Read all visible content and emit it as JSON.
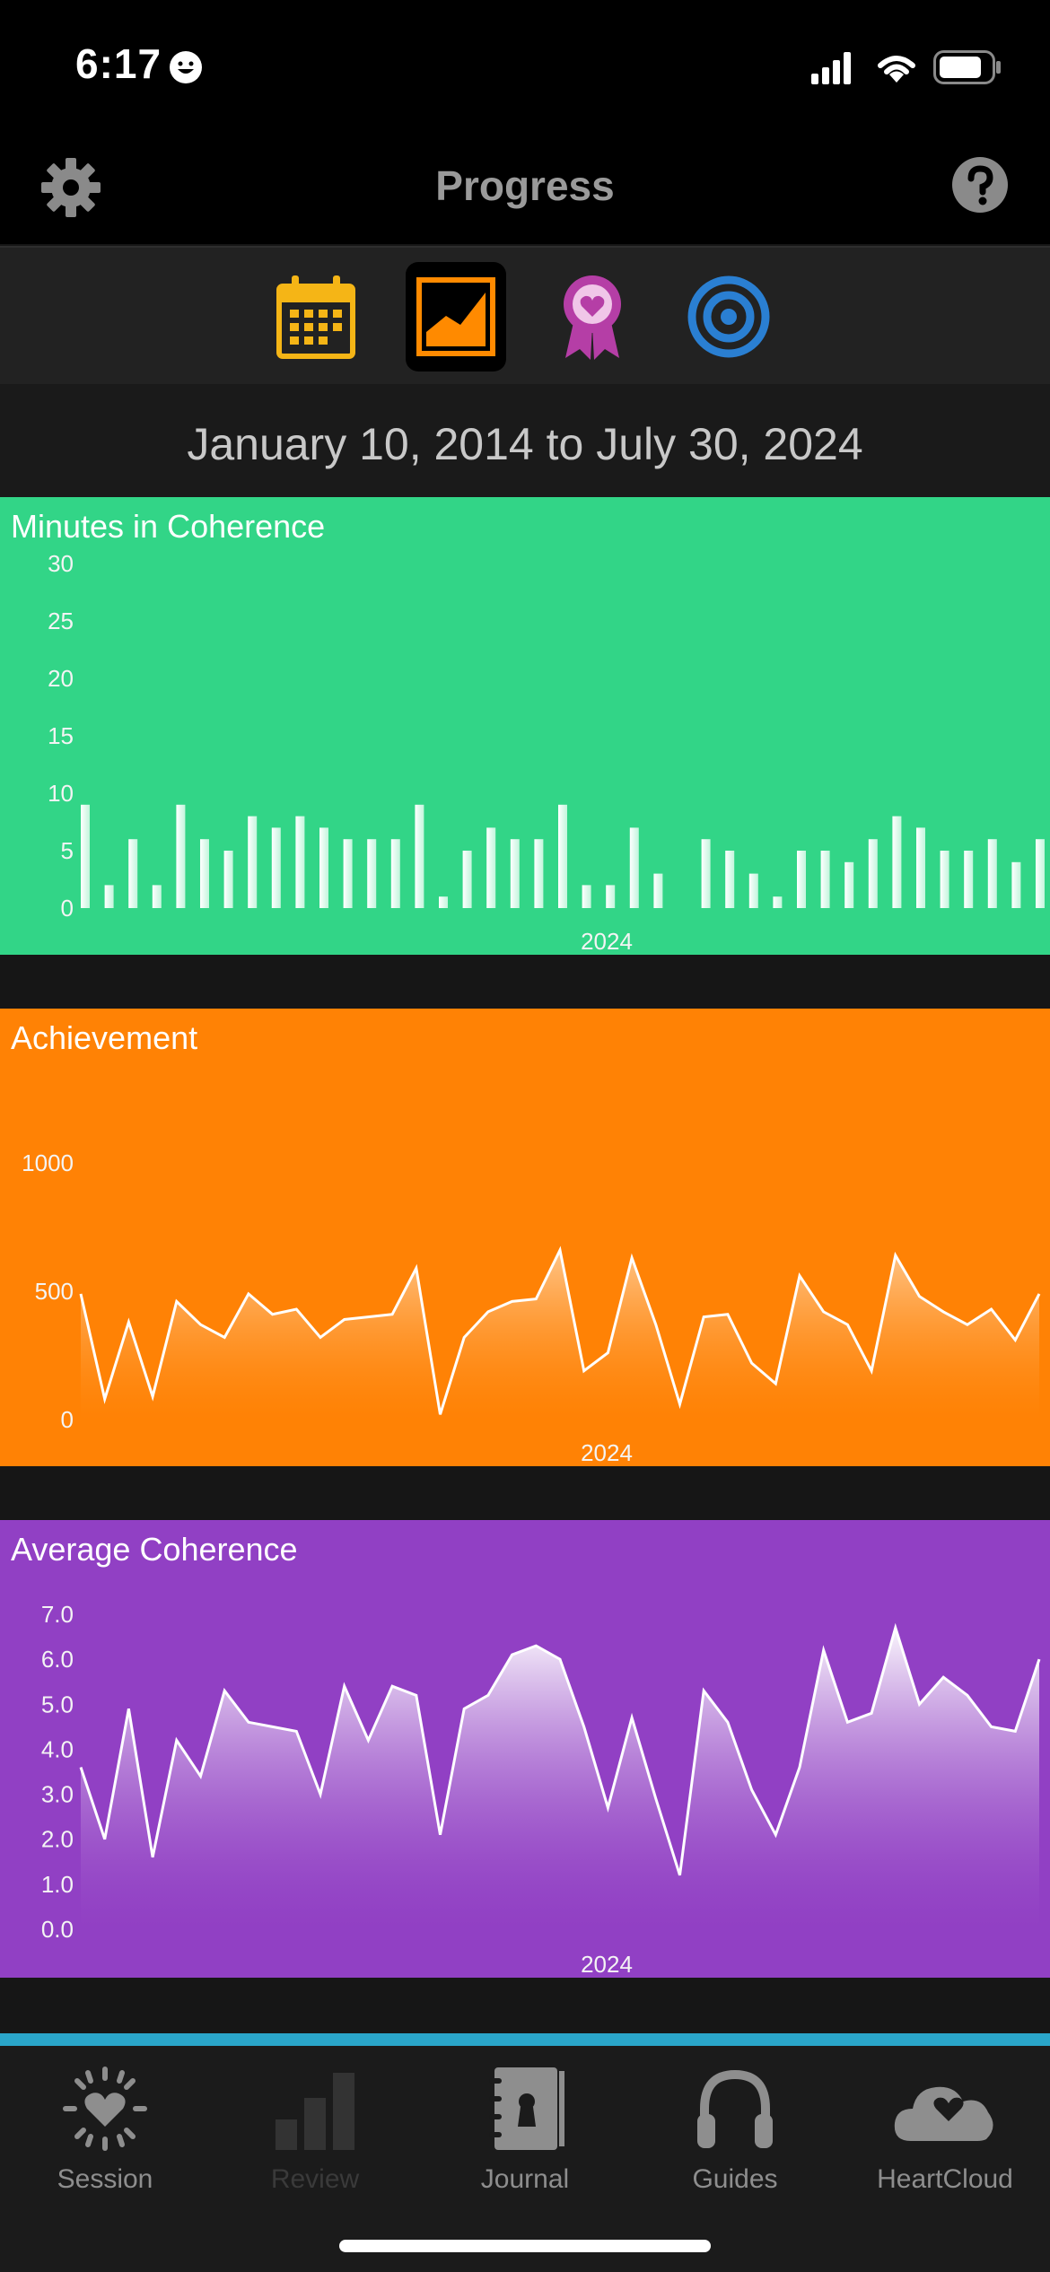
{
  "status": {
    "time": "6:17"
  },
  "nav": {
    "title": "Progress"
  },
  "tabs": [
    {
      "name": "calendar",
      "icon": "calendar-icon",
      "color": "#f5b516"
    },
    {
      "name": "chart",
      "icon": "area-chart-icon",
      "color": "#ff8a00",
      "active": true
    },
    {
      "name": "achievements",
      "icon": "award-ribbon-icon",
      "color": "#b53ea6"
    },
    {
      "name": "goals",
      "icon": "target-icon",
      "color": "#2a7fd2"
    }
  ],
  "date_range": "January 10, 2014 to July 30, 2024",
  "charts": {
    "minutes": {
      "title": "Minutes in Coherence",
      "bg": "#32d587",
      "year": "2024",
      "y_ticks": [
        "30",
        "25",
        "20",
        "15",
        "10",
        "5",
        "0"
      ]
    },
    "achievement": {
      "title": "Achievement",
      "bg": "#ff8205",
      "year": "2024",
      "y_ticks": [
        "1000",
        "500",
        "0"
      ]
    },
    "average": {
      "title": "Average Coherence",
      "bg": "#9140c4",
      "year": "2024",
      "y_ticks": [
        "7.0",
        "6.0",
        "5.0",
        "4.0",
        "3.0",
        "2.0",
        "1.0",
        "0.0"
      ]
    }
  },
  "chart_data": [
    {
      "type": "bar",
      "title": "Minutes in Coherence",
      "xlabel": "2024",
      "ylim": [
        0,
        30
      ],
      "values": [
        9,
        2,
        6,
        2,
        9,
        6,
        5,
        8,
        7,
        8,
        7,
        6,
        6,
        6,
        9,
        1,
        5,
        7,
        6,
        6,
        9,
        2,
        2,
        7,
        3,
        0,
        6,
        5,
        3,
        1,
        5,
        5,
        4,
        6,
        8,
        7,
        5,
        5,
        6,
        4,
        6
      ]
    },
    {
      "type": "area",
      "title": "Achievement",
      "xlabel": "2024",
      "ylim": [
        0,
        1000
      ],
      "values": [
        490,
        80,
        380,
        90,
        460,
        370,
        320,
        490,
        410,
        430,
        320,
        390,
        400,
        410,
        590,
        20,
        320,
        420,
        460,
        470,
        660,
        190,
        260,
        630,
        370,
        60,
        400,
        410,
        220,
        140,
        560,
        420,
        370,
        190,
        640,
        480,
        420,
        370,
        430,
        310,
        490
      ]
    },
    {
      "type": "area",
      "title": "Average Coherence",
      "xlabel": "2024",
      "ylim": [
        0,
        7
      ],
      "values": [
        3.6,
        2.0,
        4.9,
        1.6,
        4.2,
        3.4,
        5.3,
        4.6,
        4.5,
        4.4,
        3.0,
        5.4,
        4.2,
        5.4,
        5.2,
        2.1,
        4.9,
        5.2,
        6.1,
        6.3,
        6.0,
        4.5,
        2.7,
        4.7,
        2.9,
        1.2,
        5.3,
        4.6,
        3.1,
        2.1,
        3.6,
        6.2,
        4.6,
        4.8,
        6.7,
        5.0,
        5.6,
        5.2,
        4.5,
        4.4,
        6.0
      ]
    }
  ],
  "tabbar": [
    {
      "label": "Session",
      "icon": "heart-sun-icon"
    },
    {
      "label": "Review",
      "icon": "bar-chart-icon",
      "disabled": true
    },
    {
      "label": "Journal",
      "icon": "journal-icon"
    },
    {
      "label": "Guides",
      "icon": "headphones-icon"
    },
    {
      "label": "HeartCloud",
      "icon": "heart-cloud-icon"
    }
  ]
}
